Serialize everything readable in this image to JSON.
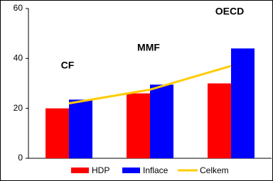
{
  "chart_data": {
    "type": "bar",
    "categories": [
      null,
      null,
      null
    ],
    "annotations": [
      "CF",
      "MMF",
      "OECD"
    ],
    "series": [
      {
        "name": "HDP",
        "type": "bar",
        "color": "#ff0000",
        "values": [
          20,
          26,
          30
        ]
      },
      {
        "name": "Inflace",
        "type": "bar",
        "color": "#0000ff",
        "values": [
          23.5,
          29.5,
          44
        ]
      },
      {
        "name": "Celkem",
        "type": "line",
        "color": "#ffcc00",
        "values": [
          22,
          27.5,
          37
        ]
      }
    ],
    "ylim": [
      0,
      60
    ],
    "yticks": [
      0,
      20,
      40,
      60
    ],
    "grid": false,
    "legend": "bottom"
  }
}
